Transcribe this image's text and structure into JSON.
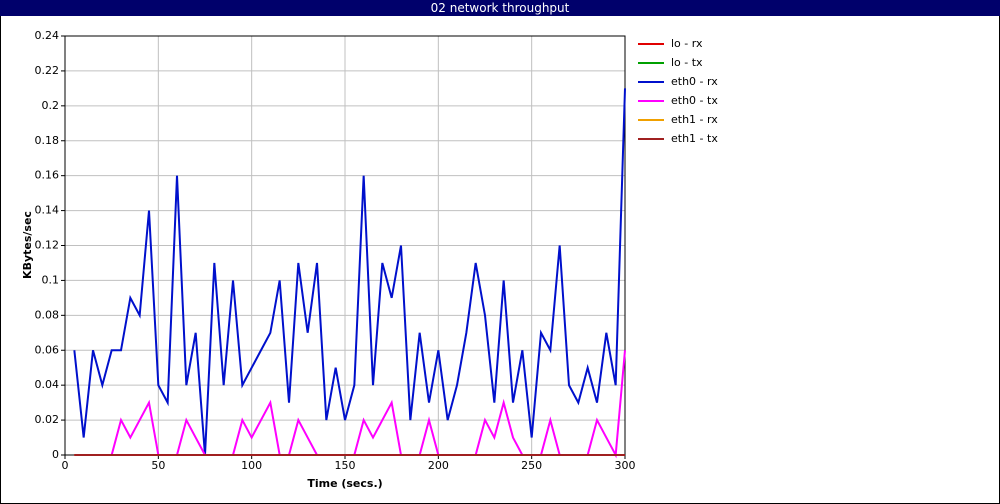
{
  "chart_data": {
    "type": "line",
    "title": "02 network throughput",
    "x_label": "Time (secs.)",
    "y_label": "KBytes/sec",
    "x": [
      5,
      10,
      15,
      20,
      25,
      30,
      35,
      40,
      45,
      50,
      55,
      60,
      65,
      70,
      75,
      80,
      85,
      90,
      95,
      100,
      105,
      110,
      115,
      120,
      125,
      130,
      135,
      140,
      145,
      150,
      155,
      160,
      165,
      170,
      175,
      180,
      185,
      190,
      195,
      200,
      205,
      210,
      215,
      220,
      225,
      230,
      235,
      240,
      245,
      250,
      255,
      260,
      265,
      270,
      275,
      280,
      285,
      290,
      295,
      300
    ],
    "series": [
      {
        "name": "lo - rx",
        "color": "#e00000",
        "values": [
          0,
          0,
          0,
          0,
          0,
          0,
          0,
          0,
          0,
          0,
          0,
          0,
          0,
          0,
          0,
          0,
          0,
          0,
          0,
          0,
          0,
          0,
          0,
          0,
          0,
          0,
          0,
          0,
          0,
          0,
          0,
          0,
          0,
          0,
          0,
          0,
          0,
          0,
          0,
          0,
          0,
          0,
          0,
          0,
          0,
          0,
          0,
          0,
          0,
          0,
          0,
          0,
          0,
          0,
          0,
          0,
          0,
          0,
          0,
          0
        ]
      },
      {
        "name": "lo - tx",
        "color": "#00a000",
        "values": [
          0,
          0,
          0,
          0,
          0,
          0,
          0,
          0,
          0,
          0,
          0,
          0,
          0,
          0,
          0,
          0,
          0,
          0,
          0,
          0,
          0,
          0,
          0,
          0,
          0,
          0,
          0,
          0,
          0,
          0,
          0,
          0,
          0,
          0,
          0,
          0,
          0,
          0,
          0,
          0,
          0,
          0,
          0,
          0,
          0,
          0,
          0,
          0,
          0,
          0,
          0,
          0,
          0,
          0,
          0,
          0,
          0,
          0,
          0,
          0
        ]
      },
      {
        "name": "eth0 - rx",
        "color": "#0010cc",
        "values": [
          0.06,
          0.01,
          0.06,
          0.04,
          0.06,
          0.06,
          0.09,
          0.08,
          0.14,
          0.04,
          0.03,
          0.16,
          0.04,
          0.07,
          0,
          0.11,
          0.04,
          0.1,
          0.04,
          0.05,
          0.06,
          0.07,
          0.1,
          0.03,
          0.11,
          0.07,
          0.11,
          0.02,
          0.05,
          0.02,
          0.04,
          0.16,
          0.04,
          0.11,
          0.09,
          0.12,
          0.02,
          0.07,
          0.03,
          0.06,
          0.02,
          0.04,
          0.07,
          0.11,
          0.08,
          0.03,
          0.1,
          0.03,
          0.06,
          0.01,
          0.07,
          0.06,
          0.12,
          0.04,
          0.03,
          0.05,
          0.03,
          0.07,
          0.04,
          0.21
        ]
      },
      {
        "name": "eth0 - tx",
        "color": "#ff00ff",
        "values": [
          0,
          0,
          0,
          0,
          0,
          0.02,
          0.01,
          0.02,
          0.03,
          0,
          0,
          0,
          0.02,
          0.01,
          0,
          0,
          0,
          0,
          0.02,
          0.01,
          0.02,
          0.03,
          0,
          0,
          0.02,
          0.01,
          0,
          0,
          0,
          0,
          0,
          0.02,
          0.01,
          0.02,
          0.03,
          0,
          0,
          0,
          0.02,
          0,
          0,
          0,
          0,
          0,
          0.02,
          0.01,
          0.03,
          0.01,
          0,
          0,
          0,
          0.02,
          0,
          0,
          0,
          0,
          0.02,
          0.01,
          0,
          0.06
        ]
      },
      {
        "name": "eth1 - rx",
        "color": "#f0a000",
        "values": [
          0,
          0,
          0,
          0,
          0,
          0,
          0,
          0,
          0,
          0,
          0,
          0,
          0,
          0,
          0,
          0,
          0,
          0,
          0,
          0,
          0,
          0,
          0,
          0,
          0,
          0,
          0,
          0,
          0,
          0,
          0,
          0,
          0,
          0,
          0,
          0,
          0,
          0,
          0,
          0,
          0,
          0,
          0,
          0,
          0,
          0,
          0,
          0,
          0,
          0,
          0,
          0,
          0,
          0,
          0,
          0,
          0,
          0,
          0,
          0
        ]
      },
      {
        "name": "eth1 - tx",
        "color": "#a02020",
        "values": [
          0,
          0,
          0,
          0,
          0,
          0,
          0,
          0,
          0,
          0,
          0,
          0,
          0,
          0,
          0,
          0,
          0,
          0,
          0,
          0,
          0,
          0,
          0,
          0,
          0,
          0,
          0,
          0,
          0,
          0,
          0,
          0,
          0,
          0,
          0,
          0,
          0,
          0,
          0,
          0,
          0,
          0,
          0,
          0,
          0,
          0,
          0,
          0,
          0,
          0,
          0,
          0,
          0,
          0,
          0,
          0,
          0,
          0,
          0,
          0
        ]
      }
    ],
    "xlim": [
      0,
      300
    ],
    "xticks": [
      0,
      50,
      100,
      150,
      200,
      250,
      300
    ],
    "ylim": [
      0,
      0.24
    ],
    "yticks": [
      0,
      0.02,
      0.04,
      0.06,
      0.08,
      0.1,
      0.12,
      0.14,
      0.16,
      0.18,
      0.2,
      0.22,
      0.24
    ],
    "grid": true
  }
}
